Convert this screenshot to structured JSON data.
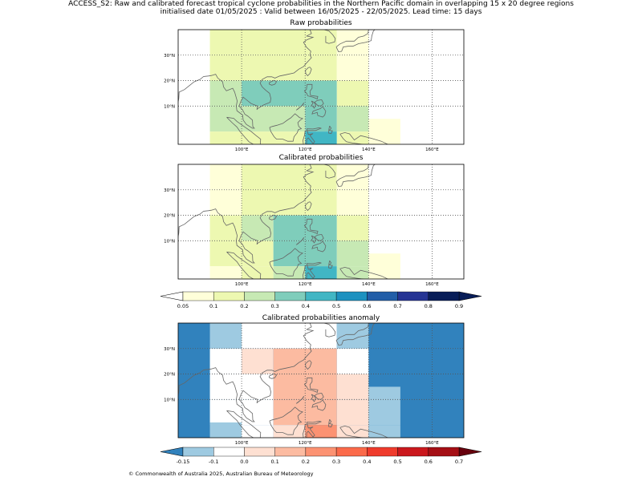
{
  "header": {
    "line1": "ACCESS_S2: Raw and calibrated forecast tropical cyclone probabilities in the Northern Pacific domain in overlapping 15 x 20 degree regions",
    "line2": "initialised date 01/05/2025 :  Valid between 16/05/2025 - 22/05/2025. Lead time: 15 days"
  },
  "panels": [
    {
      "title": "Raw probabilities",
      "cells": [
        {
          "lon0": 90,
          "lon1": 130,
          "lat0": 30,
          "lat1": 40,
          "color": "#edf8b1"
        },
        {
          "lon0": 130,
          "lon1": 140,
          "lat0": 30,
          "lat1": 40,
          "color": "#ffffd9"
        },
        {
          "lon0": 90,
          "lon1": 130,
          "lat0": 20,
          "lat1": 30,
          "color": "#edf8b1"
        },
        {
          "lon0": 130,
          "lon1": 140,
          "lat0": 20,
          "lat1": 30,
          "color": "#ffffd9"
        },
        {
          "lon0": 90,
          "lon1": 100,
          "lat0": 10,
          "lat1": 20,
          "color": "#c7e9b4"
        },
        {
          "lon0": 100,
          "lon1": 130,
          "lat0": 10,
          "lat1": 20,
          "color": "#7fcdbb"
        },
        {
          "lon0": 130,
          "lon1": 140,
          "lat0": 10,
          "lat1": 20,
          "color": "#edf8b1"
        },
        {
          "lon0": 90,
          "lon1": 100,
          "lat0": 0,
          "lat1": 10,
          "color": "#c7e9b4"
        },
        {
          "lon0": 100,
          "lon1": 120,
          "lat0": 0,
          "lat1": 10,
          "color": "#c7e9b4"
        },
        {
          "lon0": 120,
          "lon1": 130,
          "lat0": 0,
          "lat1": 10,
          "color": "#7fcdbb"
        },
        {
          "lon0": 130,
          "lon1": 140,
          "lat0": 0,
          "lat1": 10,
          "color": "#c7e9b4"
        },
        {
          "lon0": 140,
          "lon1": 150,
          "lat0": -5,
          "lat1": 5,
          "color": "#ffffd9"
        },
        {
          "lon0": 90,
          "lon1": 120,
          "lat0": -5,
          "lat1": 0,
          "color": "#edf8b1"
        },
        {
          "lon0": 120,
          "lon1": 130,
          "lat0": -5,
          "lat1": 0,
          "color": "#41b6c4"
        },
        {
          "lon0": 130,
          "lon1": 140,
          "lat0": -5,
          "lat1": 0,
          "color": "#edf8b1"
        }
      ]
    },
    {
      "title": "Calibrated probabilities",
      "cells": [
        {
          "lon0": 90,
          "lon1": 100,
          "lat0": 30,
          "lat1": 40,
          "color": "#ffffd9"
        },
        {
          "lon0": 100,
          "lon1": 130,
          "lat0": 30,
          "lat1": 40,
          "color": "#edf8b1"
        },
        {
          "lon0": 130,
          "lon1": 140,
          "lat0": 30,
          "lat1": 40,
          "color": "#ffffd9"
        },
        {
          "lon0": 90,
          "lon1": 100,
          "lat0": 20,
          "lat1": 30,
          "color": "#ffffd9"
        },
        {
          "lon0": 100,
          "lon1": 130,
          "lat0": 20,
          "lat1": 30,
          "color": "#edf8b1"
        },
        {
          "lon0": 130,
          "lon1": 140,
          "lat0": 20,
          "lat1": 30,
          "color": "#ffffd9"
        },
        {
          "lon0": 90,
          "lon1": 100,
          "lat0": 10,
          "lat1": 20,
          "color": "#edf8b1"
        },
        {
          "lon0": 100,
          "lon1": 110,
          "lat0": 10,
          "lat1": 20,
          "color": "#c7e9b4"
        },
        {
          "lon0": 110,
          "lon1": 130,
          "lat0": 10,
          "lat1": 20,
          "color": "#7fcdbb"
        },
        {
          "lon0": 130,
          "lon1": 140,
          "lat0": 10,
          "lat1": 20,
          "color": "#edf8b1"
        },
        {
          "lon0": 90,
          "lon1": 110,
          "lat0": 0,
          "lat1": 10,
          "color": "#edf8b1"
        },
        {
          "lon0": 110,
          "lon1": 130,
          "lat0": 0,
          "lat1": 10,
          "color": "#7fcdbb"
        },
        {
          "lon0": 130,
          "lon1": 140,
          "lat0": 0,
          "lat1": 10,
          "color": "#c7e9b4"
        },
        {
          "lon0": 140,
          "lon1": 150,
          "lat0": -5,
          "lat1": 5,
          "color": "#ffffd9"
        },
        {
          "lon0": 90,
          "lon1": 100,
          "lat0": -5,
          "lat1": 0,
          "color": "#ffffd9"
        },
        {
          "lon0": 100,
          "lon1": 110,
          "lat0": -5,
          "lat1": 0,
          "color": "#edf8b1"
        },
        {
          "lon0": 110,
          "lon1": 120,
          "lat0": -5,
          "lat1": 0,
          "color": "#c7e9b4"
        },
        {
          "lon0": 120,
          "lon1": 130,
          "lat0": -5,
          "lat1": 0,
          "color": "#41b6c4"
        },
        {
          "lon0": 130,
          "lon1": 140,
          "lat0": -5,
          "lat1": 0,
          "color": "#c7e9b4"
        }
      ]
    },
    {
      "title": "Calibrated probabilities anomaly",
      "background": "#3182bd",
      "cells": [
        {
          "lon0": 90,
          "lon1": 100,
          "lat0": 30,
          "lat1": 40,
          "color": "#9ecae1"
        },
        {
          "lon0": 100,
          "lon1": 130,
          "lat0": 30,
          "lat1": 40,
          "color": "#ffffff"
        },
        {
          "lon0": 130,
          "lon1": 140,
          "lat0": 30,
          "lat1": 40,
          "color": "#9ecae1"
        },
        {
          "lon0": 90,
          "lon1": 100,
          "lat0": 20,
          "lat1": 30,
          "color": "#ffffff"
        },
        {
          "lon0": 100,
          "lon1": 110,
          "lat0": 20,
          "lat1": 30,
          "color": "#fee0d2"
        },
        {
          "lon0": 110,
          "lon1": 130,
          "lat0": 20,
          "lat1": 30,
          "color": "#fcbba1"
        },
        {
          "lon0": 130,
          "lon1": 140,
          "lat0": 20,
          "lat1": 30,
          "color": "#ffffff"
        },
        {
          "lon0": 90,
          "lon1": 110,
          "lat0": 10,
          "lat1": 20,
          "color": "#ffffff"
        },
        {
          "lon0": 110,
          "lon1": 130,
          "lat0": 10,
          "lat1": 20,
          "color": "#fcbba1"
        },
        {
          "lon0": 130,
          "lon1": 140,
          "lat0": 10,
          "lat1": 20,
          "color": "#fee0d2"
        },
        {
          "lon0": 140,
          "lon1": 150,
          "lat0": 0,
          "lat1": 15,
          "color": "#9ecae1"
        },
        {
          "lon0": 90,
          "lon1": 100,
          "lat0": 0,
          "lat1": 10,
          "color": "#ffffff"
        },
        {
          "lon0": 100,
          "lon1": 110,
          "lat0": 0,
          "lat1": 10,
          "color": "#ffffff"
        },
        {
          "lon0": 110,
          "lon1": 120,
          "lat0": 0,
          "lat1": 10,
          "color": "#fcbba1"
        },
        {
          "lon0": 120,
          "lon1": 130,
          "lat0": 0,
          "lat1": 10,
          "color": "#fcbba1"
        },
        {
          "lon0": 130,
          "lon1": 140,
          "lat0": 0,
          "lat1": 10,
          "color": "#fee0d2"
        },
        {
          "lon0": 90,
          "lon1": 100,
          "lat0": -5,
          "lat1": 1,
          "color": "#9ecae1"
        },
        {
          "lon0": 100,
          "lon1": 110,
          "lat0": -5,
          "lat1": 0,
          "color": "#ffffff"
        },
        {
          "lon0": 110,
          "lon1": 120,
          "lat0": -5,
          "lat1": 0,
          "color": "#fee0d2"
        },
        {
          "lon0": 120,
          "lon1": 130,
          "lat0": -5,
          "lat1": 0,
          "color": "#fc9272"
        },
        {
          "lon0": 130,
          "lon1": 140,
          "lat0": -5,
          "lat1": 0,
          "color": "#fee0d2"
        },
        {
          "lon0": 140,
          "lon1": 150,
          "lat0": -5,
          "lat1": 0,
          "color": "#9ecae1"
        }
      ]
    }
  ],
  "map": {
    "lon_min": 80,
    "lon_max": 170,
    "lat_min": -5,
    "lat_max": 40,
    "lon_ticks": [
      100,
      120,
      140,
      160
    ],
    "lon_tick_labels": [
      "100°E",
      "120°E",
      "140°E",
      "160°E"
    ],
    "lat_ticks": [
      10,
      20,
      30
    ],
    "lat_tick_labels": [
      "10°N",
      "20°N",
      "30°N"
    ]
  },
  "colorbar_prob": {
    "labels": [
      "0.05",
      "0.1",
      "0.2",
      "0.3",
      "0.4",
      "0.5",
      "0.6",
      "0.7",
      "0.8",
      "0.9"
    ],
    "colors": [
      "#ffffd9",
      "#edf8b1",
      "#c7e9b4",
      "#7fcdbb",
      "#41b6c4",
      "#1d91c0",
      "#225ea8",
      "#253494",
      "#081d58"
    ],
    "under_color": "#ffffff",
    "over_color": "#081d58"
  },
  "colorbar_anom": {
    "labels": [
      "-0.15",
      "-0.1",
      "0.0",
      "0.1",
      "0.2",
      "0.3",
      "0.4",
      "0.5",
      "0.6",
      "0.7"
    ],
    "colors": [
      "#9ecae1",
      "#ffffff",
      "#fee0d2",
      "#fcbba1",
      "#fc9272",
      "#fb6a4a",
      "#ef3b2c",
      "#cb181d",
      "#a50f15"
    ],
    "under_color": "#3182bd",
    "over_color": "#67000d"
  },
  "footer": "© Commonwealth of Australia 2025, Australian Bureau of Meteorology"
}
